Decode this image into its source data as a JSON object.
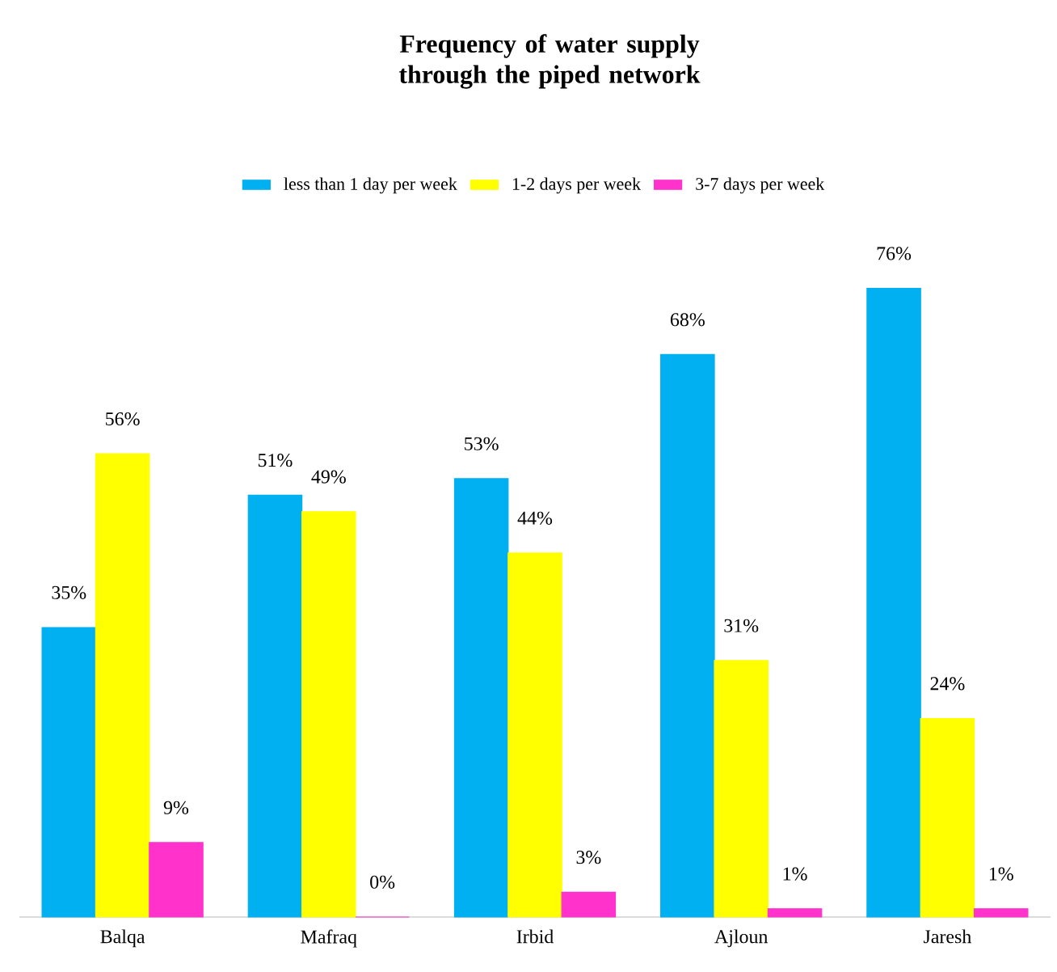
{
  "chart_data": {
    "type": "bar",
    "title": "Frequency of water supply through the piped network",
    "categories": [
      "Balqa",
      "Mafraq",
      "Irbid",
      "Ajloun",
      "Jaresh"
    ],
    "series": [
      {
        "name": "less than 1 day per week",
        "color": "#00b0f0",
        "values": [
          35,
          51,
          53,
          68,
          76
        ],
        "value_labels": [
          "35%",
          "51%",
          "53%",
          "68%",
          "76%"
        ]
      },
      {
        "name": "1-2 days per week",
        "color": "#ffff00",
        "values": [
          56,
          49,
          44,
          31,
          24
        ],
        "value_labels": [
          "56%",
          "49%",
          "44%",
          "31%",
          "24%"
        ]
      },
      {
        "name": "3-7 days per week",
        "color": "#ff33cc",
        "values": [
          9,
          0,
          3,
          1,
          1
        ],
        "value_labels": [
          "9%",
          "0%",
          "3%",
          "1%",
          "1%"
        ]
      }
    ],
    "legend": "top"
  }
}
